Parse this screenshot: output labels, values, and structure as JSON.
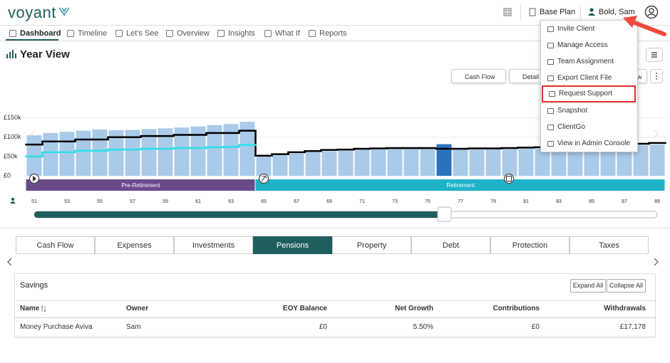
{
  "header": {
    "logo": "voyant",
    "plan": "Base Plan",
    "user": "Bold, Sam"
  },
  "nav": [
    {
      "label": "Dashboard",
      "active": true
    },
    {
      "label": "Timeline"
    },
    {
      "label": "Let's See"
    },
    {
      "label": "Overview"
    },
    {
      "label": "Insights"
    },
    {
      "label": "What If"
    },
    {
      "label": "Reports"
    }
  ],
  "page_title": "Year View",
  "toolbar": [
    "Cash Flow",
    "Detail",
    "View"
  ],
  "menu": [
    {
      "label": "Invite Client"
    },
    {
      "label": "Manage Access"
    },
    {
      "label": "Team Assignment"
    },
    {
      "label": "Export Client File"
    },
    {
      "label": "Request Support",
      "highlighted": true
    },
    {
      "label": "Snapshot"
    },
    {
      "label": "ClientGo"
    },
    {
      "label": "View in Admin Console"
    }
  ],
  "chart_data": {
    "type": "bar",
    "x": [
      51,
      52,
      53,
      54,
      55,
      56,
      57,
      58,
      59,
      60,
      61,
      62,
      63,
      64,
      65,
      66,
      67,
      68,
      69,
      70,
      71,
      72,
      73,
      74,
      75,
      76,
      77,
      78,
      79,
      80,
      81,
      82,
      83,
      84,
      85,
      86,
      87,
      88,
      89
    ],
    "xlim": [
      50.5,
      89.5
    ],
    "xticks": [
      51,
      53,
      55,
      57,
      59,
      61,
      63,
      65,
      67,
      69,
      71,
      73,
      75,
      77,
      79,
      81,
      83,
      85,
      87,
      89
    ],
    "ylim": [
      0,
      190000
    ],
    "yticks": [
      {
        "value": 0,
        "label": "£0"
      },
      {
        "value": 50000,
        "label": "£50k"
      },
      {
        "value": 100000,
        "label": "£100k"
      },
      {
        "value": 150000,
        "label": "£150k"
      }
    ],
    "grid": true,
    "selected_x": 76,
    "highlight_color": "#2b72bd",
    "series": [
      {
        "type": "bar",
        "color": "#a9cae8",
        "values": [
          105000,
          111000,
          114000,
          117000,
          120000,
          118000,
          119000,
          121000,
          123000,
          125000,
          128000,
          131000,
          134000,
          140000,
          50000,
          53000,
          58000,
          61000,
          64000,
          66000,
          68000,
          69000,
          70000,
          70000,
          70000,
          82000,
          68000,
          68000,
          69000,
          69000,
          70000,
          71000,
          72000,
          72000,
          74000,
          75000,
          77000,
          79000,
          81000
        ]
      },
      {
        "type": "step",
        "color": "#000000",
        "values": [
          81000,
          89000,
          89000,
          94000,
          94000,
          100000,
          100000,
          103000,
          103000,
          106000,
          106000,
          111000,
          111000,
          117000,
          52000,
          56000,
          61000,
          64000,
          67000,
          68000,
          70000,
          71000,
          72000,
          72000,
          72000,
          70000,
          70000,
          71000,
          71000,
          72000,
          73000,
          74000,
          74000,
          76000,
          77000,
          79000,
          81000,
          83000,
          85000
        ]
      },
      {
        "type": "step",
        "color": "#2fe0ec",
        "values": [
          50000,
          61000,
          61000,
          65000,
          65000,
          68000,
          68000,
          70000,
          70000,
          72000,
          72000,
          74000,
          75000,
          80000,
          null,
          null,
          null,
          null,
          null,
          null,
          null,
          null,
          null,
          null,
          null,
          null,
          null,
          null,
          null,
          null,
          null,
          null,
          null,
          null,
          null,
          null,
          null,
          null,
          null
        ]
      }
    ],
    "phases": [
      {
        "label": "Pre-Retirement",
        "start": 51,
        "end": 64,
        "color": "#6b4a8c"
      },
      {
        "label": "Retirement",
        "start": 65,
        "end": 89,
        "color": "#1fb3c8"
      }
    ]
  },
  "tabs": [
    {
      "label": "Cash Flow"
    },
    {
      "label": "Expenses"
    },
    {
      "label": "Investments"
    },
    {
      "label": "Pensions",
      "active": true
    },
    {
      "label": "Property"
    },
    {
      "label": "Debt"
    },
    {
      "label": "Protection"
    },
    {
      "label": "Taxes"
    }
  ],
  "table": {
    "title": "Savings",
    "buttons": [
      "Expand All",
      "Collapse All"
    ],
    "columns": [
      "Name",
      "Owner",
      "EOY Balance",
      "Net Growth",
      "Contributions",
      "Withdrawals"
    ],
    "rows": [
      [
        "Money Purchase Aviva",
        "Sam",
        "£0",
        "5.50%",
        "£0",
        "£17,178"
      ]
    ]
  }
}
